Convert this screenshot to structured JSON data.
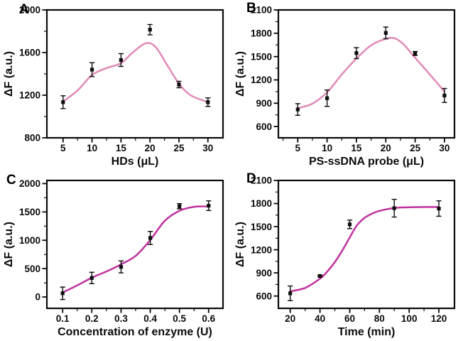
{
  "figure": {
    "background": "#ffffff",
    "text_color": "#0a0a0a",
    "pink_curve_color": "#e189b7",
    "magenta_curve_color": "#c0339e",
    "marker_color": "#0d0d0d"
  },
  "chart_data": [
    {
      "type": "line",
      "panel_label": "A",
      "title": "",
      "xlabel": "HDs (μL)",
      "ylabel": "ΔF (a.u.)",
      "curve_color": "#e189b7",
      "marker_color": "#0d0d0d",
      "xlim": [
        2.2,
        32.6
      ],
      "ylim": [
        800,
        2000
      ],
      "xticks": [
        5,
        10,
        15,
        20,
        25,
        30
      ],
      "yticks": [
        800,
        1200,
        1600,
        2000
      ],
      "xminor": 2.5,
      "yminor": 200,
      "x": [
        5,
        10,
        15,
        20,
        25,
        30
      ],
      "y": [
        1135,
        1440,
        1530,
        1815,
        1300,
        1135
      ],
      "yerr": [
        60,
        65,
        60,
        48,
        30,
        40
      ],
      "fit": [
        [
          5,
          1140
        ],
        [
          7.5,
          1245
        ],
        [
          10,
          1390
        ],
        [
          12.5,
          1455
        ],
        [
          15,
          1500
        ],
        [
          17,
          1600
        ],
        [
          19.3,
          1688
        ],
        [
          21,
          1650
        ],
        [
          23,
          1480
        ],
        [
          25,
          1310
        ],
        [
          27,
          1200
        ],
        [
          30,
          1135
        ]
      ]
    },
    {
      "type": "line",
      "panel_label": "B",
      "title": "",
      "xlabel": "PS-ssDNA probe (μL)",
      "ylabel": "ΔF (a.u.)",
      "curve_color": "#e189b7",
      "marker_color": "#0d0d0d",
      "xlim": [
        1.7,
        31.7
      ],
      "ylim": [
        455,
        2100
      ],
      "xticks": [
        5,
        10,
        15,
        20,
        25,
        30
      ],
      "yticks": [
        600,
        900,
        1200,
        1500,
        1800,
        2100
      ],
      "xminor": 2.5,
      "yminor": 150,
      "x": [
        5,
        10,
        15,
        20,
        25,
        30
      ],
      "y": [
        820,
        965,
        1545,
        1805,
        1540,
        1000
      ],
      "yerr": [
        75,
        105,
        70,
        75,
        25,
        90
      ],
      "fit": [
        [
          5,
          835
        ],
        [
          7.5,
          895
        ],
        [
          10,
          1040
        ],
        [
          12.5,
          1270
        ],
        [
          15,
          1475
        ],
        [
          17.5,
          1645
        ],
        [
          20,
          1728
        ],
        [
          21.5,
          1735
        ],
        [
          23,
          1660
        ],
        [
          25,
          1485
        ],
        [
          27.5,
          1270
        ],
        [
          30,
          1050
        ]
      ]
    },
    {
      "type": "line",
      "panel_label": "C",
      "title": "",
      "xlabel": "Concentration of enzyme (U)",
      "ylabel": "ΔF (a.u.)",
      "curve_color": "#c0339e",
      "marker_color": "#0d0d0d",
      "xlim": [
        0.046,
        0.649
      ],
      "ylim": [
        -200,
        2055
      ],
      "xticks": [
        0.1,
        0.2,
        0.3,
        0.4,
        0.5,
        0.6
      ],
      "yticks": [
        0,
        500,
        1000,
        1500,
        2000
      ],
      "xminor": 0.05,
      "yminor": 250,
      "x": [
        0.1,
        0.2,
        0.3,
        0.4,
        0.5,
        0.6
      ],
      "y": [
        65,
        335,
        530,
        1040,
        1600,
        1610
      ],
      "yerr": [
        110,
        100,
        105,
        115,
        45,
        85
      ],
      "fit": [
        [
          0.1,
          80
        ],
        [
          0.15,
          205
        ],
        [
          0.2,
          340
        ],
        [
          0.25,
          450
        ],
        [
          0.3,
          575
        ],
        [
          0.35,
          725
        ],
        [
          0.4,
          1005
        ],
        [
          0.45,
          1345
        ],
        [
          0.5,
          1520
        ],
        [
          0.55,
          1590
        ],
        [
          0.6,
          1598
        ]
      ]
    },
    {
      "type": "line",
      "panel_label": "D",
      "title": "",
      "xlabel": "Time (min)",
      "ylabel": "ΔF (a.u.)",
      "curve_color": "#c0339e",
      "marker_color": "#0d0d0d",
      "xlim": [
        12,
        130.5
      ],
      "ylim": [
        440,
        2100
      ],
      "xticks": [
        20,
        40,
        60,
        80,
        100,
        120
      ],
      "yticks": [
        600,
        900,
        1200,
        1500,
        1800,
        2100
      ],
      "xminor": 10,
      "yminor": 150,
      "x": [
        20,
        40,
        60,
        90,
        120
      ],
      "y": [
        635,
        860,
        1530,
        1740,
        1735
      ],
      "yerr": [
        95,
        12,
        55,
        115,
        100
      ],
      "fit": [
        [
          20,
          660
        ],
        [
          30,
          705
        ],
        [
          40,
          825
        ],
        [
          45,
          920
        ],
        [
          50,
          1040
        ],
        [
          55,
          1190
        ],
        [
          60,
          1360
        ],
        [
          65,
          1520
        ],
        [
          70,
          1615
        ],
        [
          75,
          1668
        ],
        [
          80,
          1705
        ],
        [
          90,
          1742
        ],
        [
          100,
          1752
        ],
        [
          110,
          1755
        ],
        [
          120,
          1755
        ]
      ]
    }
  ]
}
